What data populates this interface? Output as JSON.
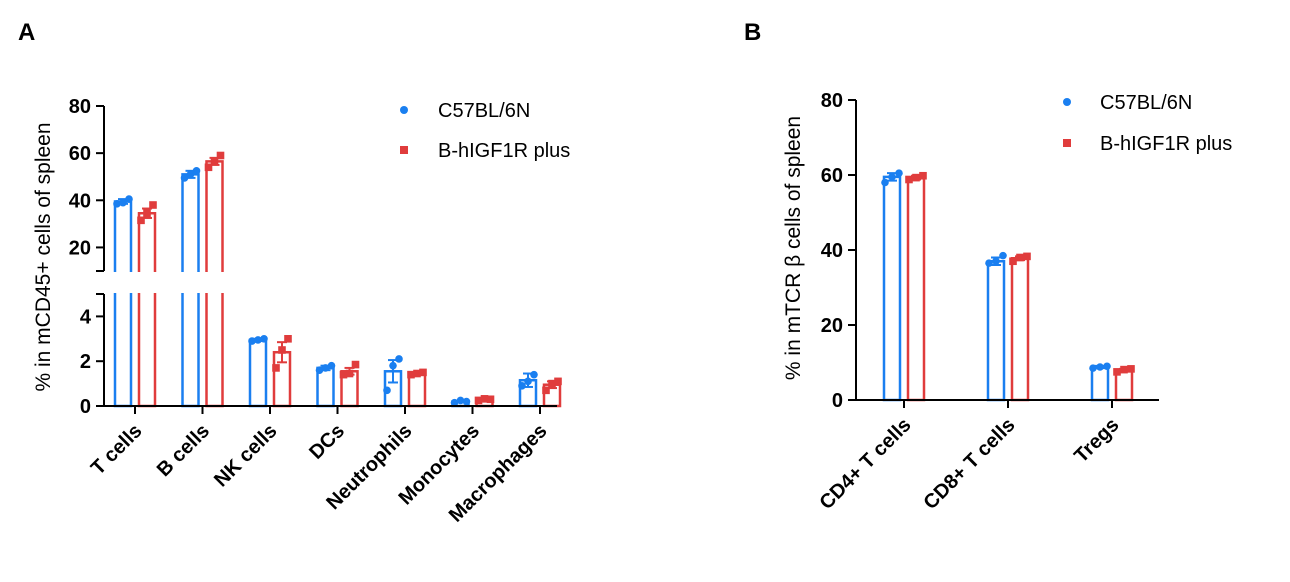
{
  "colors": {
    "C57BL_6N": "#1a7ff0",
    "B_hIGF1R_plus": "#e03c3c"
  },
  "chart_data": [
    {
      "panel": "A",
      "type": "bar",
      "title": "",
      "xlabel": "",
      "ylabel": "% in mCD45+ cells of spleen",
      "axis_break": {
        "lower_range": [
          0,
          5
        ],
        "upper_range": [
          10,
          80
        ]
      },
      "lower_ticks": [
        0,
        2,
        4
      ],
      "upper_ticks": [
        20,
        40,
        60,
        80
      ],
      "legend_placement": "top-right",
      "categories": [
        "T cells",
        "B cells",
        "NK cells",
        "DCs",
        "Neutrophils",
        "Monocytes",
        "Macrophages"
      ],
      "series": [
        {
          "name": "C57BL/6N",
          "marker": "circle",
          "values": [
            39.5,
            51.0,
            2.95,
            1.7,
            1.55,
            0.2,
            1.15
          ],
          "errors": [
            1.0,
            1.5,
            0.05,
            0.1,
            0.5,
            0.03,
            0.3
          ],
          "points": [
            [
              38.5,
              40.5,
              39.0
            ],
            [
              49.5,
              52.5,
              51.0
            ],
            [
              2.9,
              3.0,
              2.95
            ],
            [
              1.6,
              1.8,
              1.7
            ],
            [
              0.7,
              2.1,
              1.8
            ],
            [
              0.15,
              0.2,
              0.25
            ],
            [
              0.9,
              1.4,
              1.1
            ]
          ]
        },
        {
          "name": "B-hIGF1R plus",
          "marker": "square",
          "values": [
            34.5,
            56.5,
            2.4,
            1.55,
            1.45,
            0.3,
            0.95
          ],
          "errors": [
            2.0,
            1.5,
            0.45,
            0.15,
            0.05,
            0.03,
            0.15
          ],
          "points": [
            [
              31.5,
              38.0,
              34.5
            ],
            [
              54.0,
              59.0,
              56.5
            ],
            [
              1.7,
              3.0,
              2.5
            ],
            [
              1.4,
              1.85,
              1.45
            ],
            [
              1.4,
              1.5,
              1.45
            ],
            [
              0.25,
              0.3,
              0.32
            ],
            [
              0.7,
              1.1,
              1.0
            ]
          ]
        }
      ]
    },
    {
      "panel": "B",
      "type": "bar",
      "title": "",
      "xlabel": "",
      "ylabel": "% in mTCR β cells of spleen",
      "ylim": [
        0,
        80
      ],
      "ticks": [
        0,
        20,
        40,
        60,
        80
      ],
      "legend_placement": "top-right",
      "categories": [
        "CD4+ T cells",
        "CD8+ T cells",
        "Tregs"
      ],
      "series": [
        {
          "name": "C57BL/6N",
          "marker": "circle",
          "values": [
            59.5,
            37.0,
            8.8
          ],
          "errors": [
            1.0,
            1.0,
            0.3
          ],
          "points": [
            [
              58.0,
              60.5,
              59.5
            ],
            [
              36.5,
              38.5,
              37.0
            ],
            [
              8.5,
              9.0,
              8.8
            ]
          ]
        },
        {
          "name": "B-hIGF1R plus",
          "marker": "square",
          "values": [
            59.3,
            37.8,
            8.0
          ],
          "errors": [
            0.5,
            0.5,
            0.3
          ],
          "points": [
            [
              58.8,
              59.8,
              59.3
            ],
            [
              37.0,
              38.3,
              38.0
            ],
            [
              7.5,
              8.3,
              8.1
            ]
          ]
        }
      ]
    }
  ]
}
